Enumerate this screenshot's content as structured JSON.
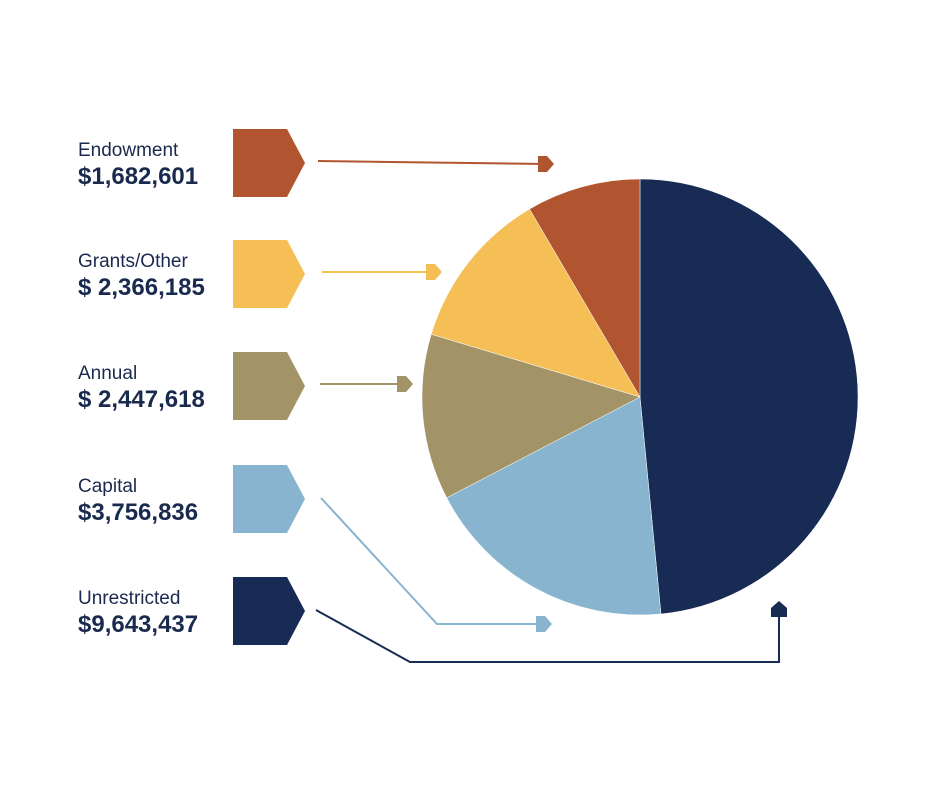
{
  "chart_data": {
    "type": "pie",
    "title": "",
    "slices": [
      {
        "label": "Endowment",
        "value_text": "$1,682,601",
        "value": 1682601,
        "color": "#b05530"
      },
      {
        "label": "Grants/Other",
        "value_text": "$ 2,366,185",
        "value": 2366185,
        "color": "#f5bf55"
      },
      {
        "label": "Annual",
        "value_text": "$ 2,447,618",
        "value": 2447618,
        "color": "#a39468"
      },
      {
        "label": "Capital",
        "value_text": "$3,756,836",
        "value": 3756836,
        "color": "#88b4cf"
      },
      {
        "label": "Unrestricted",
        "value_text": "$9,643,437",
        "value": 9643437,
        "color": "#172b54"
      }
    ]
  }
}
